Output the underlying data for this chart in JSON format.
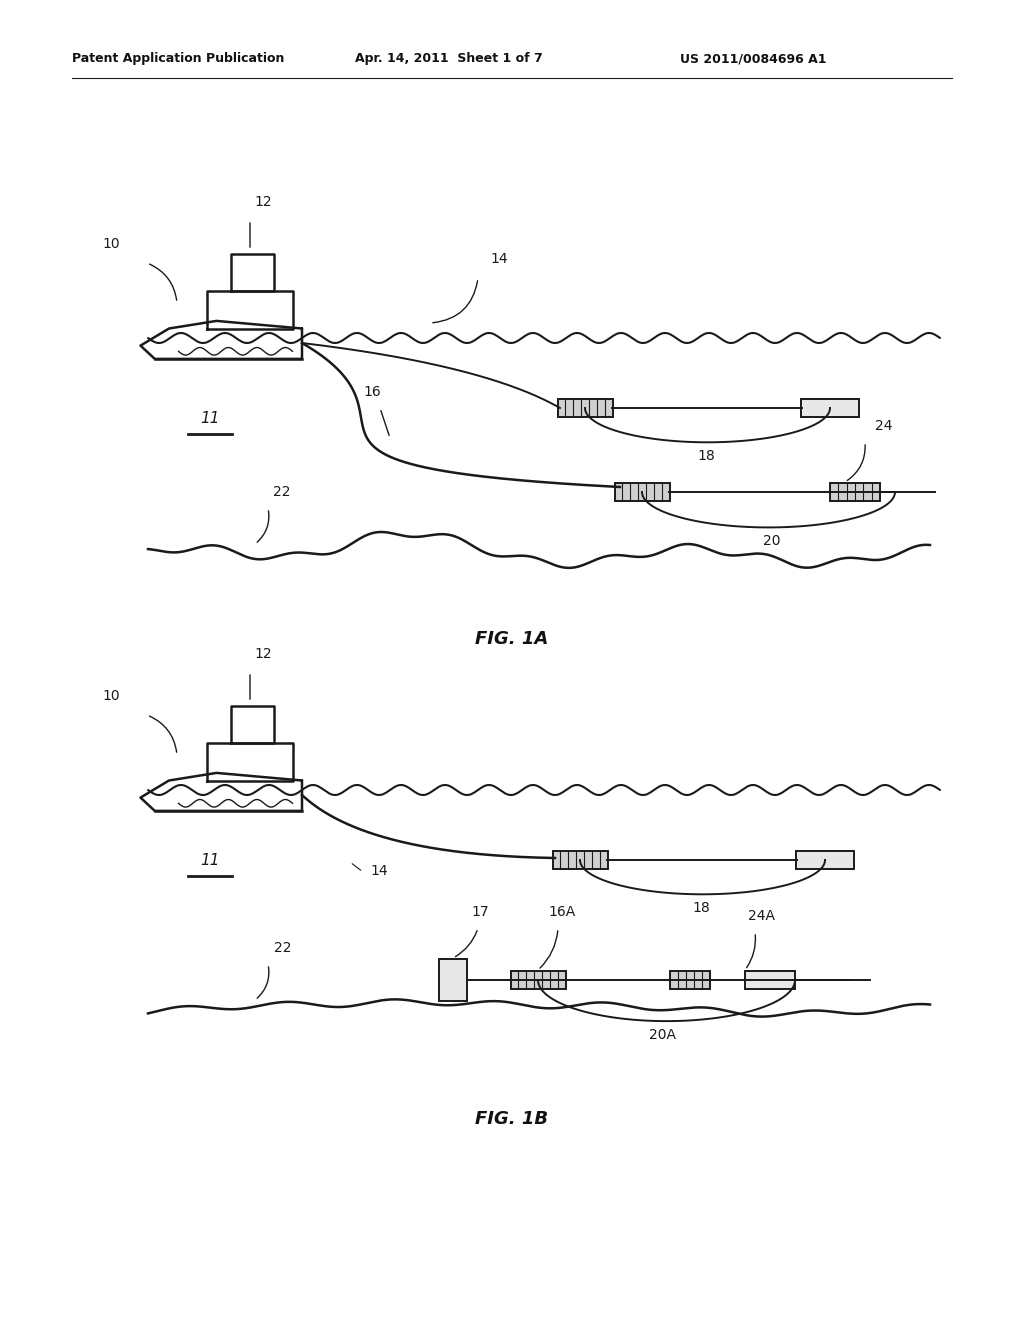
{
  "bg_color": "#ffffff",
  "line_color": "#1a1a1a",
  "fig1a_label": "FIG. 1A",
  "fig1b_label": "FIG. 1B",
  "header_left": "Patent Application Publication",
  "header_mid": "Apr. 14, 2011  Sheet 1 of 7",
  "header_right": "US 2011/0084696 A1"
}
